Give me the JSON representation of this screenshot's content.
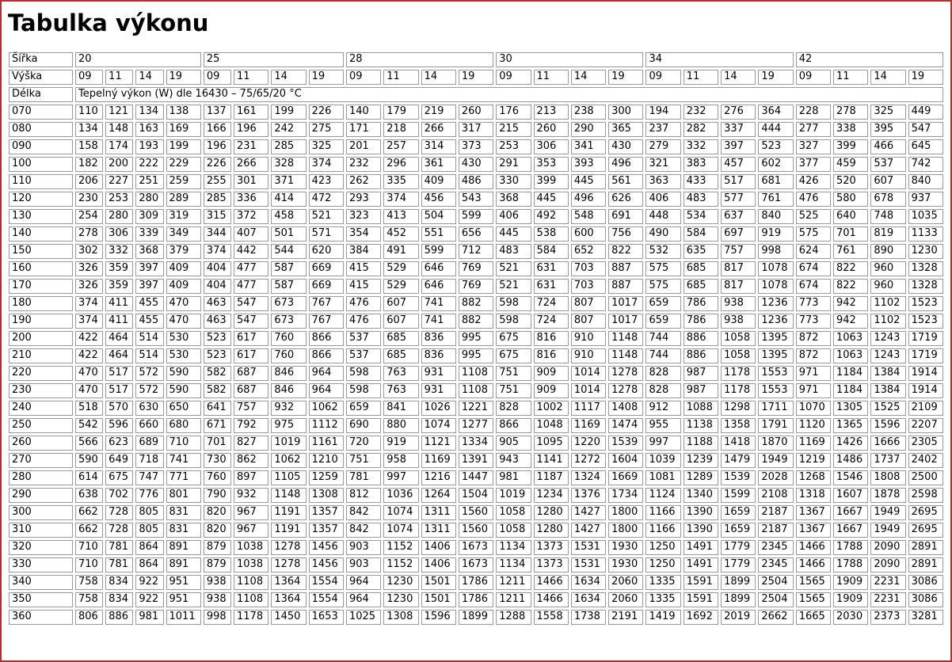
{
  "page": {
    "title": "Tabulka výkonu"
  },
  "colors": {
    "frame_border": "#a83434",
    "cell_border": "#999999",
    "text": "#000000",
    "background": "#ffffff"
  },
  "table": {
    "corner": {
      "width_label": "Šířka",
      "height_label": "Výška",
      "length_label": "Délka"
    },
    "widths": [
      "20",
      "25",
      "28",
      "30",
      "34",
      "42"
    ],
    "heights": [
      "09",
      "11",
      "14",
      "19"
    ],
    "note": "Tepelný výkon (W) dle 16430 – 75/65/20 °C",
    "rows": [
      {
        "label": "070",
        "values": [
          110,
          121,
          134,
          138,
          137,
          161,
          199,
          226,
          140,
          179,
          219,
          260,
          176,
          213,
          238,
          300,
          194,
          232,
          276,
          364,
          228,
          278,
          325,
          449
        ]
      },
      {
        "label": "080",
        "values": [
          134,
          148,
          163,
          169,
          166,
          196,
          242,
          275,
          171,
          218,
          266,
          317,
          215,
          260,
          290,
          365,
          237,
          282,
          337,
          444,
          277,
          338,
          395,
          547
        ]
      },
      {
        "label": "090",
        "values": [
          158,
          174,
          193,
          199,
          196,
          231,
          285,
          325,
          201,
          257,
          314,
          373,
          253,
          306,
          341,
          430,
          279,
          332,
          397,
          523,
          327,
          399,
          466,
          645
        ]
      },
      {
        "label": "100",
        "values": [
          182,
          200,
          222,
          229,
          226,
          266,
          328,
          374,
          232,
          296,
          361,
          430,
          291,
          353,
          393,
          496,
          321,
          383,
          457,
          602,
          377,
          459,
          537,
          742
        ]
      },
      {
        "label": "110",
        "values": [
          206,
          227,
          251,
          259,
          255,
          301,
          371,
          423,
          262,
          335,
          409,
          486,
          330,
          399,
          445,
          561,
          363,
          433,
          517,
          681,
          426,
          520,
          607,
          840
        ]
      },
      {
        "label": "120",
        "values": [
          230,
          253,
          280,
          289,
          285,
          336,
          414,
          472,
          293,
          374,
          456,
          543,
          368,
          445,
          496,
          626,
          406,
          483,
          577,
          761,
          476,
          580,
          678,
          937
        ]
      },
      {
        "label": "130",
        "values": [
          254,
          280,
          309,
          319,
          315,
          372,
          458,
          521,
          323,
          413,
          504,
          599,
          406,
          492,
          548,
          691,
          448,
          534,
          637,
          840,
          525,
          640,
          748,
          1035
        ]
      },
      {
        "label": "140",
        "values": [
          278,
          306,
          339,
          349,
          344,
          407,
          501,
          571,
          354,
          452,
          551,
          656,
          445,
          538,
          600,
          756,
          490,
          584,
          697,
          919,
          575,
          701,
          819,
          1133
        ]
      },
      {
        "label": "150",
        "values": [
          302,
          332,
          368,
          379,
          374,
          442,
          544,
          620,
          384,
          491,
          599,
          712,
          483,
          584,
          652,
          822,
          532,
          635,
          757,
          998,
          624,
          761,
          890,
          1230
        ]
      },
      {
        "label": "160",
        "values": [
          326,
          359,
          397,
          409,
          404,
          477,
          587,
          669,
          415,
          529,
          646,
          769,
          521,
          631,
          703,
          887,
          575,
          685,
          817,
          1078,
          674,
          822,
          960,
          1328
        ]
      },
      {
        "label": "170",
        "values": [
          326,
          359,
          397,
          409,
          404,
          477,
          587,
          669,
          415,
          529,
          646,
          769,
          521,
          631,
          703,
          887,
          575,
          685,
          817,
          1078,
          674,
          822,
          960,
          1328
        ]
      },
      {
        "label": "180",
        "values": [
          374,
          411,
          455,
          470,
          463,
          547,
          673,
          767,
          476,
          607,
          741,
          882,
          598,
          724,
          807,
          1017,
          659,
          786,
          938,
          1236,
          773,
          942,
          1102,
          1523
        ]
      },
      {
        "label": "190",
        "values": [
          374,
          411,
          455,
          470,
          463,
          547,
          673,
          767,
          476,
          607,
          741,
          882,
          598,
          724,
          807,
          1017,
          659,
          786,
          938,
          1236,
          773,
          942,
          1102,
          1523
        ]
      },
      {
        "label": "200",
        "values": [
          422,
          464,
          514,
          530,
          523,
          617,
          760,
          866,
          537,
          685,
          836,
          995,
          675,
          816,
          910,
          1148,
          744,
          886,
          1058,
          1395,
          872,
          1063,
          1243,
          1719
        ]
      },
      {
        "label": "210",
        "values": [
          422,
          464,
          514,
          530,
          523,
          617,
          760,
          866,
          537,
          685,
          836,
          995,
          675,
          816,
          910,
          1148,
          744,
          886,
          1058,
          1395,
          872,
          1063,
          1243,
          1719
        ]
      },
      {
        "label": "220",
        "values": [
          470,
          517,
          572,
          590,
          582,
          687,
          846,
          964,
          598,
          763,
          931,
          1108,
          751,
          909,
          1014,
          1278,
          828,
          987,
          1178,
          1553,
          971,
          1184,
          1384,
          1914
        ]
      },
      {
        "label": "230",
        "values": [
          470,
          517,
          572,
          590,
          582,
          687,
          846,
          964,
          598,
          763,
          931,
          1108,
          751,
          909,
          1014,
          1278,
          828,
          987,
          1178,
          1553,
          971,
          1184,
          1384,
          1914
        ]
      },
      {
        "label": "240",
        "values": [
          518,
          570,
          630,
          650,
          641,
          757,
          932,
          1062,
          659,
          841,
          1026,
          1221,
          828,
          1002,
          1117,
          1408,
          912,
          1088,
          1298,
          1711,
          1070,
          1305,
          1525,
          2109
        ]
      },
      {
        "label": "250",
        "values": [
          542,
          596,
          660,
          680,
          671,
          792,
          975,
          1112,
          690,
          880,
          1074,
          1277,
          866,
          1048,
          1169,
          1474,
          955,
          1138,
          1358,
          1791,
          1120,
          1365,
          1596,
          2207
        ]
      },
      {
        "label": "260",
        "values": [
          566,
          623,
          689,
          710,
          701,
          827,
          1019,
          1161,
          720,
          919,
          1121,
          1334,
          905,
          1095,
          1220,
          1539,
          997,
          1188,
          1418,
          1870,
          1169,
          1426,
          1666,
          2305
        ]
      },
      {
        "label": "270",
        "values": [
          590,
          649,
          718,
          741,
          730,
          862,
          1062,
          1210,
          751,
          958,
          1169,
          1391,
          943,
          1141,
          1272,
          1604,
          1039,
          1239,
          1479,
          1949,
          1219,
          1486,
          1737,
          2402
        ]
      },
      {
        "label": "280",
        "values": [
          614,
          675,
          747,
          771,
          760,
          897,
          1105,
          1259,
          781,
          997,
          1216,
          1447,
          981,
          1187,
          1324,
          1669,
          1081,
          1289,
          1539,
          2028,
          1268,
          1546,
          1808,
          2500
        ]
      },
      {
        "label": "290",
        "values": [
          638,
          702,
          776,
          801,
          790,
          932,
          1148,
          1308,
          812,
          1036,
          1264,
          1504,
          1019,
          1234,
          1376,
          1734,
          1124,
          1340,
          1599,
          2108,
          1318,
          1607,
          1878,
          2598
        ]
      },
      {
        "label": "300",
        "values": [
          662,
          728,
          805,
          831,
          820,
          967,
          1191,
          1357,
          842,
          1074,
          1311,
          1560,
          1058,
          1280,
          1427,
          1800,
          1166,
          1390,
          1659,
          2187,
          1367,
          1667,
          1949,
          2695
        ]
      },
      {
        "label": "310",
        "values": [
          662,
          728,
          805,
          831,
          820,
          967,
          1191,
          1357,
          842,
          1074,
          1311,
          1560,
          1058,
          1280,
          1427,
          1800,
          1166,
          1390,
          1659,
          2187,
          1367,
          1667,
          1949,
          2695
        ]
      },
      {
        "label": "320",
        "values": [
          710,
          781,
          864,
          891,
          879,
          1038,
          1278,
          1456,
          903,
          1152,
          1406,
          1673,
          1134,
          1373,
          1531,
          1930,
          1250,
          1491,
          1779,
          2345,
          1466,
          1788,
          2090,
          2891
        ]
      },
      {
        "label": "330",
        "values": [
          710,
          781,
          864,
          891,
          879,
          1038,
          1278,
          1456,
          903,
          1152,
          1406,
          1673,
          1134,
          1373,
          1531,
          1930,
          1250,
          1491,
          1779,
          2345,
          1466,
          1788,
          2090,
          2891
        ]
      },
      {
        "label": "340",
        "values": [
          758,
          834,
          922,
          951,
          938,
          1108,
          1364,
          1554,
          964,
          1230,
          1501,
          1786,
          1211,
          1466,
          1634,
          2060,
          1335,
          1591,
          1899,
          2504,
          1565,
          1909,
          2231,
          3086
        ]
      },
      {
        "label": "350",
        "values": [
          758,
          834,
          922,
          951,
          938,
          1108,
          1364,
          1554,
          964,
          1230,
          1501,
          1786,
          1211,
          1466,
          1634,
          2060,
          1335,
          1591,
          1899,
          2504,
          1565,
          1909,
          2231,
          3086
        ]
      },
      {
        "label": "360",
        "values": [
          806,
          886,
          981,
          1011,
          998,
          1178,
          1450,
          1653,
          1025,
          1308,
          1596,
          1899,
          1288,
          1558,
          1738,
          2191,
          1419,
          1692,
          2019,
          2662,
          1665,
          2030,
          2373,
          3281
        ]
      }
    ]
  }
}
